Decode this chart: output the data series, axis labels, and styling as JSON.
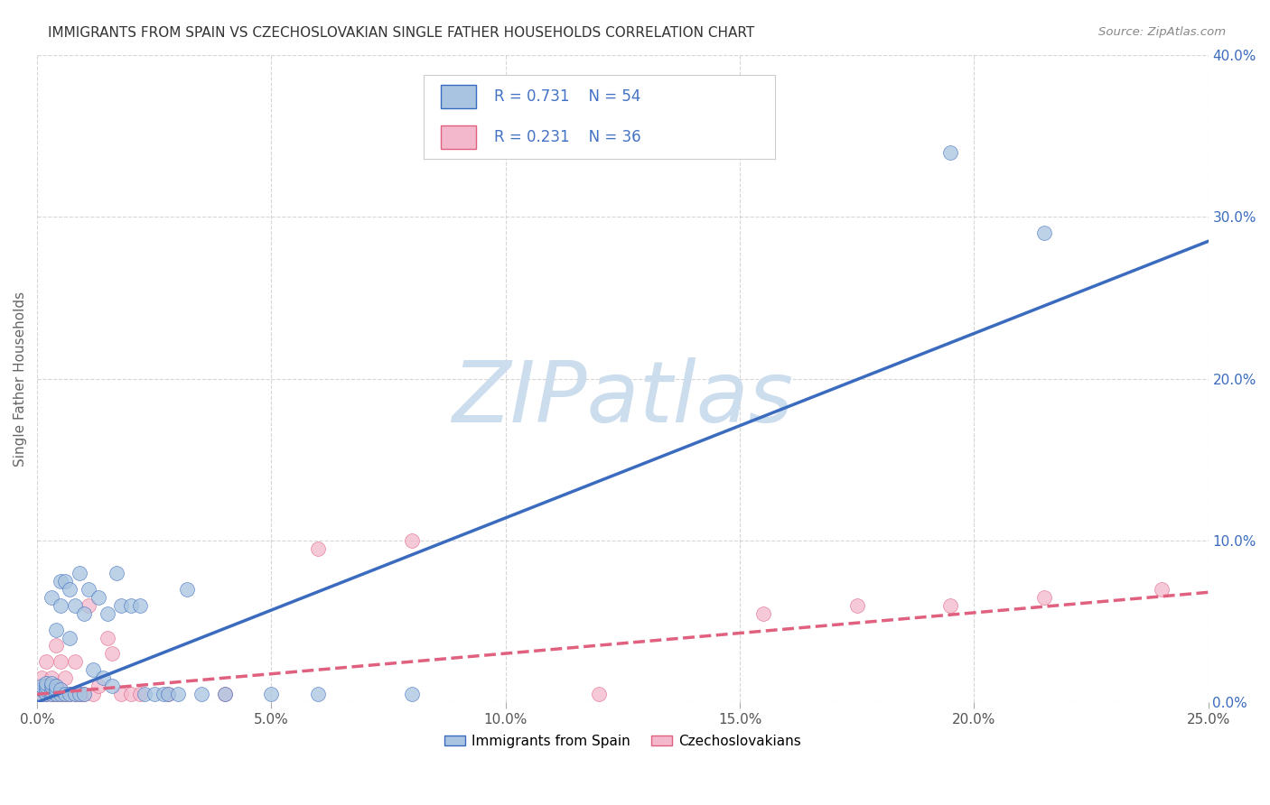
{
  "title": "IMMIGRANTS FROM SPAIN VS CZECHOSLOVAKIAN SINGLE FATHER HOUSEHOLDS CORRELATION CHART",
  "source_text": "Source: ZipAtlas.com",
  "ylabel": "Single Father Households",
  "xlim": [
    0,
    0.25
  ],
  "ylim": [
    0,
    0.4
  ],
  "xticks": [
    0.0,
    0.05,
    0.1,
    0.15,
    0.2,
    0.25
  ],
  "yticks": [
    0.0,
    0.1,
    0.2,
    0.3,
    0.4
  ],
  "series1_color": "#a8c4e0",
  "series1_line_color": "#3a6bbf",
  "series1_label": "Immigrants from Spain",
  "series1_R": "0.731",
  "series1_N": "54",
  "series2_color": "#f4b8cc",
  "series2_line_color": "#e06080",
  "series2_label": "Czechoslovakians",
  "series2_R": "0.231",
  "series2_N": "36",
  "watermark": "ZIPatlas",
  "watermark_color": "#ccdded",
  "legend_R_color": "#4472c4",
  "background_color": "#ffffff",
  "grid_color": "#cccccc",
  "title_color": "#333333",
  "blue_line": [
    0.0,
    0.0,
    0.25,
    0.285
  ],
  "pink_line": [
    0.0,
    0.005,
    0.25,
    0.068
  ],
  "blue_scatter_x": [
    0.001,
    0.001,
    0.001,
    0.002,
    0.002,
    0.002,
    0.002,
    0.003,
    0.003,
    0.003,
    0.003,
    0.003,
    0.004,
    0.004,
    0.004,
    0.004,
    0.005,
    0.005,
    0.005,
    0.005,
    0.006,
    0.006,
    0.007,
    0.007,
    0.007,
    0.008,
    0.008,
    0.009,
    0.009,
    0.01,
    0.01,
    0.011,
    0.012,
    0.013,
    0.014,
    0.015,
    0.016,
    0.017,
    0.018,
    0.02,
    0.022,
    0.023,
    0.025,
    0.027,
    0.028,
    0.03,
    0.032,
    0.035,
    0.04,
    0.05,
    0.06,
    0.08,
    0.195,
    0.215
  ],
  "blue_scatter_y": [
    0.005,
    0.008,
    0.01,
    0.005,
    0.008,
    0.01,
    0.012,
    0.005,
    0.007,
    0.01,
    0.012,
    0.065,
    0.005,
    0.008,
    0.01,
    0.045,
    0.005,
    0.008,
    0.06,
    0.075,
    0.005,
    0.075,
    0.005,
    0.04,
    0.07,
    0.005,
    0.06,
    0.005,
    0.08,
    0.005,
    0.055,
    0.07,
    0.02,
    0.065,
    0.015,
    0.055,
    0.01,
    0.08,
    0.06,
    0.06,
    0.06,
    0.005,
    0.005,
    0.005,
    0.005,
    0.005,
    0.07,
    0.005,
    0.005,
    0.005,
    0.005,
    0.005,
    0.34,
    0.29
  ],
  "pink_scatter_x": [
    0.001,
    0.001,
    0.002,
    0.002,
    0.003,
    0.003,
    0.004,
    0.004,
    0.004,
    0.005,
    0.005,
    0.006,
    0.006,
    0.007,
    0.008,
    0.008,
    0.009,
    0.01,
    0.011,
    0.012,
    0.013,
    0.015,
    0.016,
    0.018,
    0.02,
    0.022,
    0.028,
    0.04,
    0.06,
    0.08,
    0.12,
    0.155,
    0.175,
    0.195,
    0.215,
    0.24
  ],
  "pink_scatter_y": [
    0.005,
    0.015,
    0.005,
    0.025,
    0.005,
    0.015,
    0.005,
    0.01,
    0.035,
    0.005,
    0.025,
    0.005,
    0.015,
    0.005,
    0.005,
    0.025,
    0.005,
    0.005,
    0.06,
    0.005,
    0.01,
    0.04,
    0.03,
    0.005,
    0.005,
    0.005,
    0.005,
    0.005,
    0.095,
    0.1,
    0.005,
    0.055,
    0.06,
    0.06,
    0.065,
    0.07
  ]
}
